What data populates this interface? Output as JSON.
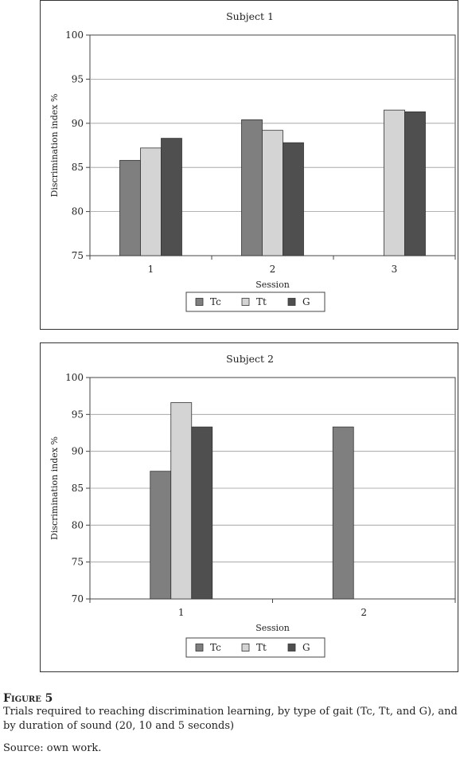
{
  "chart_data": [
    {
      "type": "bar",
      "title": "Subject 1",
      "xlabel": "Session",
      "ylabel": "Discrimination index %",
      "ylim": [
        75,
        100
      ],
      "yticks": [
        75,
        80,
        85,
        90,
        95,
        100
      ],
      "categories": [
        "1",
        "2",
        "3"
      ],
      "grid": true,
      "legend": "bottom",
      "series": [
        {
          "name": "Tc",
          "color": "#7f7f7f",
          "values": [
            85.8,
            90.4,
            null
          ]
        },
        {
          "name": "Tt",
          "color": "#d4d4d4",
          "values": [
            87.2,
            89.2,
            91.5
          ]
        },
        {
          "name": "G",
          "color": "#4f4f4f",
          "values": [
            88.3,
            87.8,
            91.3
          ]
        }
      ]
    },
    {
      "type": "bar",
      "title": "Subject 2",
      "xlabel": "Session",
      "ylabel": "Discrimination index %",
      "ylim": [
        70,
        100
      ],
      "yticks": [
        70,
        75,
        80,
        85,
        90,
        95,
        100
      ],
      "categories": [
        "1",
        "2"
      ],
      "grid": true,
      "legend": "bottom",
      "series": [
        {
          "name": "Tc",
          "color": "#7f7f7f",
          "values": [
            87.3,
            93.3
          ]
        },
        {
          "name": "Tt",
          "color": "#d4d4d4",
          "values": [
            96.6,
            null
          ]
        },
        {
          "name": "G",
          "color": "#4f4f4f",
          "values": [
            93.3,
            null
          ]
        }
      ]
    }
  ],
  "figure": {
    "label": "Figure 5",
    "caption": "Trials required to reaching discrimination learning, by type of gait (Tc, Tt, and G), and by duration of sound (20, 10 and 5 seconds)",
    "source": "Source: own work."
  }
}
